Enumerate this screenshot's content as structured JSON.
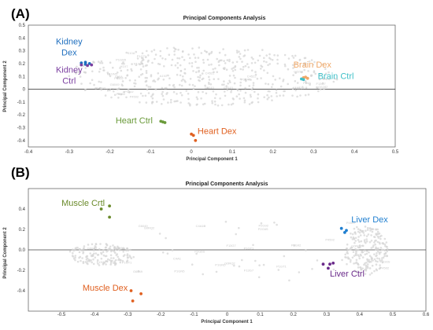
{
  "chart_data": [
    {
      "panel": "(A)",
      "type": "scatter",
      "title": "Principal Components Analysis",
      "xlabel": "Principal Component 1",
      "ylabel": "Principal Component 2",
      "xlim": [
        -0.4,
        0.5
      ],
      "ylim": [
        -0.45,
        0.5
      ],
      "xticks": [
        "-0.4",
        "-0.3",
        "-0.2",
        "-0.1",
        "0",
        "0.1",
        "0.2",
        "0.3",
        "0.4",
        "0.5"
      ],
      "yticks": [
        "0.5",
        "0.4",
        "0.3",
        "0.2",
        "0.1",
        "0",
        "-0.1",
        "-0.2",
        "-0.3",
        "-0.4"
      ],
      "cloud_labels": [
        "G6049",
        "P4502",
        "F13G7",
        "C4522",
        "S10A",
        "P1GN5",
        "G6282",
        "H1X7",
        "P1GT1",
        "A1NT",
        "P4502",
        "P24A"
      ],
      "series": [
        {
          "name": "Kidney Dex",
          "color": "#1f6fbf",
          "x": [
            -0.27,
            -0.26,
            -0.25,
            -0.26
          ],
          "y": [
            0.205,
            0.21,
            0.2,
            0.195
          ]
        },
        {
          "name": "Kidney Ctrl",
          "color": "#7b3fa0",
          "x": [
            -0.27,
            -0.255,
            -0.245
          ],
          "y": [
            0.19,
            0.185,
            0.19
          ]
        },
        {
          "name": "Brain Dex",
          "color": "#f0a868",
          "x": [
            0.275,
            0.28,
            0.285
          ],
          "y": [
            0.09,
            0.095,
            0.085
          ]
        },
        {
          "name": "Brain Ctrl",
          "color": "#3fc0c8",
          "x": [
            0.27,
            0.275
          ],
          "y": [
            0.08,
            0.075
          ]
        },
        {
          "name": "Heart Ctrl",
          "color": "#6a9a3a",
          "x": [
            -0.075,
            -0.07,
            -0.065
          ],
          "y": [
            -0.25,
            -0.255,
            -0.26
          ]
        },
        {
          "name": "Heart Dex",
          "color": "#e06020",
          "x": [
            0,
            0.005,
            0.01
          ],
          "y": [
            -0.35,
            -0.36,
            -0.4
          ]
        }
      ]
    },
    {
      "panel": "(B)",
      "type": "scatter",
      "title": "Principal Components Analysis",
      "xlabel": "Principal Component 1",
      "ylabel": "Principal Component 2",
      "xlim": [
        -0.6,
        0.6
      ],
      "ylim": [
        -0.6,
        0.6
      ],
      "xticks": [
        "-0.5",
        "-0.4",
        "-0.3",
        "-0.2",
        "-0.1",
        "0",
        "0.1",
        "0.2",
        "0.3",
        "0.4",
        "0.5",
        "0.6"
      ],
      "yticks": [
        "0.4",
        "0.2",
        "0.0",
        "-0.2",
        "-0.4"
      ],
      "cloud_labels": [
        "G6049",
        "P1GT1",
        "P2G92",
        "F13G7",
        "P2G6S",
        "P4502",
        "G0RQ2",
        "P1GN5",
        "C4A1"
      ],
      "series": [
        {
          "name": "Muscle Crtl",
          "color": "#6a8a2a",
          "x": [
            -0.38,
            -0.355,
            -0.355
          ],
          "y": [
            0.4,
            0.43,
            0.32
          ]
        },
        {
          "name": "Muscle Dex",
          "color": "#e06020",
          "x": [
            -0.29,
            -0.26,
            -0.285
          ],
          "y": [
            -0.4,
            -0.43,
            -0.5
          ]
        },
        {
          "name": "Liver Dex",
          "color": "#1f7fd0",
          "x": [
            0.345,
            0.355,
            0.36
          ],
          "y": [
            0.21,
            0.17,
            0.19
          ]
        },
        {
          "name": "Liver Ctrl",
          "color": "#6a2a8a",
          "x": [
            0.29,
            0.31,
            0.305,
            0.32
          ],
          "y": [
            -0.14,
            -0.14,
            -0.18,
            -0.13
          ]
        }
      ]
    }
  ]
}
